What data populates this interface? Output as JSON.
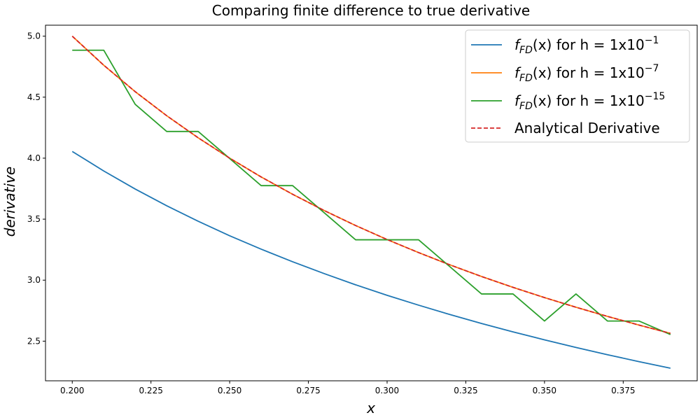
{
  "chart_data": {
    "type": "line",
    "title": "Comparing finite difference to true derivative",
    "xlabel": "x",
    "ylabel": "derivative",
    "xlim": [
      0.1915,
      0.3985
    ],
    "ylim": [
      2.175,
      5.09
    ],
    "xticks": [
      "0.200",
      "0.225",
      "0.250",
      "0.275",
      "0.300",
      "0.325",
      "0.350",
      "0.375"
    ],
    "yticks": [
      "2.5",
      "3.0",
      "3.5",
      "4.0",
      "4.5",
      "5.0"
    ],
    "grid": false,
    "legend_position": "top-right",
    "x": [
      0.2,
      0.21,
      0.22,
      0.23,
      0.24,
      0.25,
      0.26,
      0.27,
      0.28,
      0.29,
      0.3,
      0.31,
      0.32,
      0.33,
      0.34,
      0.35,
      0.36,
      0.37,
      0.38,
      0.39
    ],
    "series": [
      {
        "name_prefix": "f",
        "name_sub": "FD",
        "name_mid": "(x) for h = 1x10",
        "name_sup": "−1",
        "color": "#1f77b4",
        "dashed": false,
        "values": [
          4.055,
          3.895,
          3.747,
          3.61,
          3.483,
          3.364,
          3.254,
          3.151,
          3.054,
          2.962,
          2.876,
          2.795,
          2.718,
          2.645,
          2.576,
          2.511,
          2.448,
          2.389,
          2.332,
          2.278
        ]
      },
      {
        "name_prefix": "f",
        "name_sub": "FD",
        "name_mid": "(x) for h = 1x10",
        "name_sup": "−7",
        "color": "#ff7f0e",
        "dashed": false,
        "values": [
          5.0,
          4.762,
          4.545,
          4.348,
          4.167,
          4.0,
          3.846,
          3.704,
          3.571,
          3.448,
          3.333,
          3.226,
          3.125,
          3.03,
          2.941,
          2.857,
          2.778,
          2.703,
          2.632,
          2.564
        ]
      },
      {
        "name_prefix": "f",
        "name_sub": "FD",
        "name_mid": "(x) for h = 1x10",
        "name_sup": "−15",
        "color": "#2ca02c",
        "dashed": false,
        "values": [
          4.885,
          4.885,
          4.441,
          4.219,
          4.219,
          3.997,
          3.775,
          3.775,
          3.553,
          3.331,
          3.331,
          3.331,
          3.109,
          2.887,
          2.887,
          2.665,
          2.887,
          2.665,
          2.665,
          2.554
        ]
      },
      {
        "name": "Analytical Derivative",
        "color": "#d62728",
        "dashed": true,
        "values": [
          5.0,
          4.762,
          4.545,
          4.348,
          4.167,
          4.0,
          3.846,
          3.704,
          3.571,
          3.448,
          3.333,
          3.226,
          3.125,
          3.03,
          2.941,
          2.857,
          2.778,
          2.703,
          2.632,
          2.564
        ]
      }
    ]
  }
}
